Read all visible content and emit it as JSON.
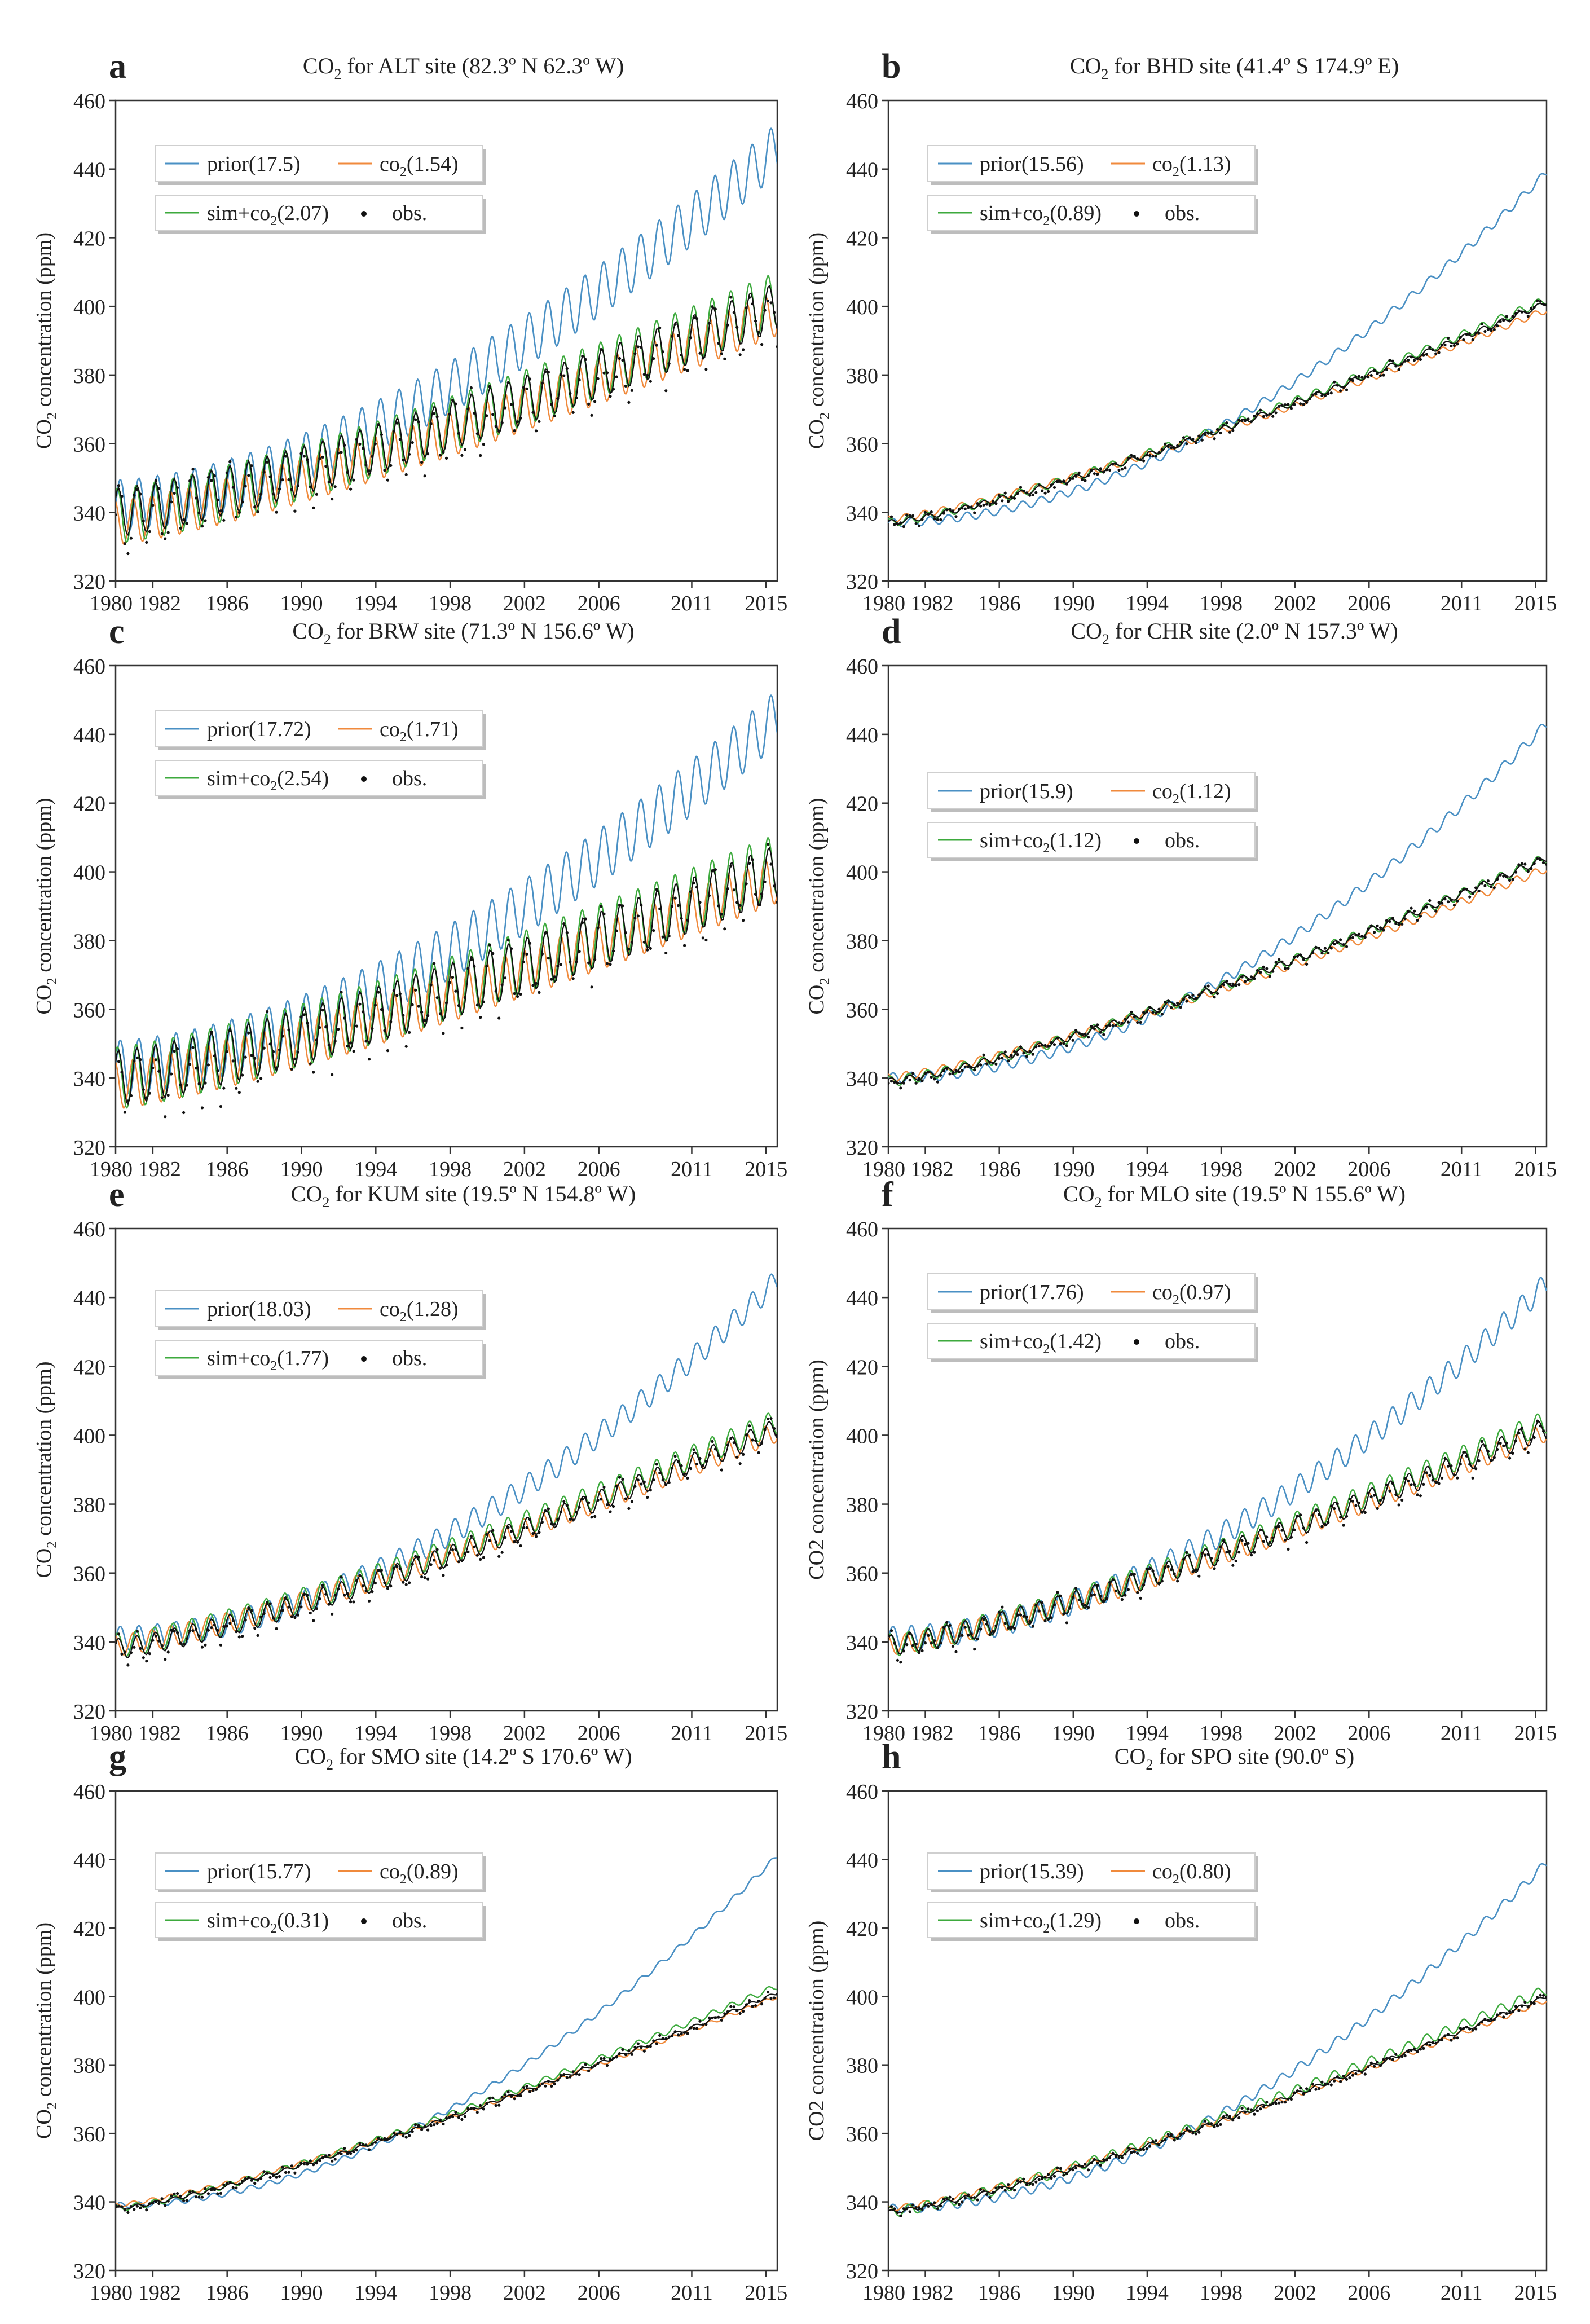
{
  "figure": {
    "xtick_labels": [
      "1980",
      "1982",
      "1986",
      "1990",
      "1994",
      "1998",
      "2002",
      "2006",
      "2011",
      "2015"
    ],
    "ytick_labels": [
      "320",
      "340",
      "360",
      "380",
      "400",
      "420",
      "440",
      "460"
    ],
    "obs_label": "obs."
  },
  "colors": {
    "prior": "#4a90c4",
    "co2": "#f08a3c",
    "sim": "#3daa3d",
    "obs": "#111111",
    "axis": "#333333"
  },
  "chart_data": [
    {
      "panel": "a",
      "type": "line",
      "title_pre": "CO",
      "title_sub": "2",
      "title_post": " for ALT site (82.3º N 62.3º W)",
      "ylabel_pre": "CO",
      "ylabel_sub": "2",
      "ylabel_post": " concentration (ppm)",
      "xlim": [
        1980,
        2015.6
      ],
      "ylim": [
        320,
        460
      ],
      "series": [
        {
          "key": "prior",
          "name_pre": "prior(17.5)",
          "name_sub": "",
          "name_post": "",
          "start": 342,
          "end": 446,
          "amplitude": 7.5,
          "curvature": 1.3
        },
        {
          "key": "co2",
          "name_pre": "co",
          "name_sub": "2",
          "name_post": "(1.54)",
          "start": 337,
          "end": 398,
          "amplitude": 6.5,
          "curvature": 0.9
        },
        {
          "key": "sim",
          "name_pre": "sim+co",
          "name_sub": "2",
          "name_post": "(2.07)",
          "start": 339,
          "end": 402,
          "amplitude": 8,
          "curvature": 0.9
        },
        {
          "key": "obs",
          "name_pre": "",
          "name_sub": "",
          "name_post": "",
          "start": 340,
          "end": 400,
          "amplitude": 7,
          "curvature": 0.9
        }
      ]
    },
    {
      "panel": "b",
      "type": "line",
      "title_pre": "CO",
      "title_sub": "2",
      "title_post": " for BHD site (41.4º S 174.9º E)",
      "ylabel_pre": "CO",
      "ylabel_sub": "2",
      "ylabel_post": " concentration (ppm)",
      "xlim": [
        1980,
        2015.6
      ],
      "ylim": [
        320,
        460
      ],
      "series": [
        {
          "key": "prior",
          "name_pre": "prior(15.56)",
          "name_sub": "",
          "name_post": "",
          "start": 337,
          "end": 439,
          "amplitude": 1.2,
          "curvature": 1.6
        },
        {
          "key": "co2",
          "name_pre": "co",
          "name_sub": "2",
          "name_post": "(1.13)",
          "start": 338,
          "end": 399,
          "amplitude": 1.0,
          "curvature": 0.9
        },
        {
          "key": "sim",
          "name_pre": "sim+co",
          "name_sub": "2",
          "name_post": "(0.89)",
          "start": 337,
          "end": 402,
          "amplitude": 1.2,
          "curvature": 0.9
        },
        {
          "key": "obs",
          "name_pre": "",
          "name_sub": "",
          "name_post": "",
          "start": 337,
          "end": 401,
          "amplitude": 0.8,
          "curvature": 0.9
        }
      ]
    },
    {
      "panel": "c",
      "type": "line",
      "title_pre": "CO",
      "title_sub": "2",
      "title_post": " for BRW site (71.3º N 156.6º W)",
      "ylabel_pre": "CO",
      "ylabel_sub": "2",
      "ylabel_post": " concentration (ppm)",
      "xlim": [
        1980,
        2015.6
      ],
      "ylim": [
        320,
        460
      ],
      "series": [
        {
          "key": "prior",
          "name_pre": "prior(17.72)",
          "name_sub": "",
          "name_post": "",
          "start": 343,
          "end": 445,
          "amplitude": 8,
          "curvature": 1.3
        },
        {
          "key": "co2",
          "name_pre": "co",
          "name_sub": "2",
          "name_post": "(1.71)",
          "start": 338,
          "end": 398,
          "amplitude": 7,
          "curvature": 0.9
        },
        {
          "key": "sim",
          "name_pre": "sim+co",
          "name_sub": "2",
          "name_post": "(2.54)",
          "start": 340,
          "end": 402,
          "amplitude": 9,
          "curvature": 0.9
        },
        {
          "key": "obs",
          "name_pre": "",
          "name_sub": "",
          "name_post": "",
          "start": 340,
          "end": 400,
          "amplitude": 8,
          "curvature": 0.9
        }
      ]
    },
    {
      "panel": "d",
      "type": "line",
      "title_pre": "CO",
      "title_sub": "2",
      "title_post": " for CHR site (2.0º N 157.3º W)",
      "ylabel_pre": "CO",
      "ylabel_sub": "2",
      "ylabel_post": " concentration (ppm)",
      "xlim": [
        1980,
        2015.6
      ],
      "ylim": [
        320,
        460
      ],
      "series": [
        {
          "key": "prior",
          "name_pre": "prior(15.9)",
          "name_sub": "",
          "name_post": "",
          "start": 340,
          "end": 443,
          "amplitude": 1.5,
          "curvature": 1.6
        },
        {
          "key": "co2",
          "name_pre": "co",
          "name_sub": "2",
          "name_post": "(1.12)",
          "start": 340,
          "end": 401,
          "amplitude": 1.2,
          "curvature": 0.9
        },
        {
          "key": "sim",
          "name_pre": "sim+co",
          "name_sub": "2",
          "name_post": "(1.12)",
          "start": 339,
          "end": 404,
          "amplitude": 1.5,
          "curvature": 0.9
        },
        {
          "key": "obs",
          "name_pre": "",
          "name_sub": "",
          "name_post": "",
          "start": 339,
          "end": 404,
          "amplitude": 1.0,
          "curvature": 0.9
        }
      ]
    },
    {
      "panel": "e",
      "type": "line",
      "title_pre": "CO",
      "title_sub": "2",
      "title_post": " for KUM site (19.5º N 154.8º W)",
      "ylabel_pre": "CO",
      "ylabel_sub": "2",
      "ylabel_post": " concentration (ppm)",
      "xlim": [
        1980,
        2015.6
      ],
      "ylim": [
        320,
        460
      ],
      "series": [
        {
          "key": "prior",
          "name_pre": "prior(18.03)",
          "name_sub": "",
          "name_post": "",
          "start": 341,
          "end": 445,
          "amplitude": 3.5,
          "curvature": 1.5
        },
        {
          "key": "co2",
          "name_pre": "co",
          "name_sub": "2",
          "name_post": "(1.28)",
          "start": 339,
          "end": 401,
          "amplitude": 3,
          "curvature": 0.9
        },
        {
          "key": "sim",
          "name_pre": "sim+co",
          "name_sub": "2",
          "name_post": "(1.77)",
          "start": 339,
          "end": 404,
          "amplitude": 3.5,
          "curvature": 0.9
        },
        {
          "key": "obs",
          "name_pre": "",
          "name_sub": "",
          "name_post": "",
          "start": 338,
          "end": 402,
          "amplitude": 3,
          "curvature": 0.9
        }
      ]
    },
    {
      "panel": "f",
      "type": "line",
      "title_pre": "CO",
      "title_sub": "2",
      "title_post": " for MLO site (19.5º N 155.6º W)",
      "ylabel_pre": "CO2 concentration (ppm)",
      "ylabel_sub": "",
      "ylabel_post": "",
      "xlim": [
        1980,
        2015.6
      ],
      "ylim": [
        320,
        460
      ],
      "series": [
        {
          "key": "prior",
          "name_pre": "prior(17.76)",
          "name_sub": "",
          "name_post": "",
          "start": 341,
          "end": 444,
          "amplitude": 3.5,
          "curvature": 1.5
        },
        {
          "key": "co2",
          "name_pre": "co",
          "name_sub": "2",
          "name_post": "(0.97)",
          "start": 339,
          "end": 401,
          "amplitude": 2.8,
          "curvature": 0.9
        },
        {
          "key": "sim",
          "name_pre": "sim+co",
          "name_sub": "2",
          "name_post": "(1.42)",
          "start": 339,
          "end": 404,
          "amplitude": 3.3,
          "curvature": 0.9
        },
        {
          "key": "obs",
          "name_pre": "",
          "name_sub": "",
          "name_post": "",
          "start": 339,
          "end": 402,
          "amplitude": 3,
          "curvature": 0.9
        }
      ]
    },
    {
      "panel": "g",
      "type": "line",
      "title_pre": "CO",
      "title_sub": "2",
      "title_post": " for SMO site (14.2º S 170.6º W)",
      "ylabel_pre": "CO",
      "ylabel_sub": "2",
      "ylabel_post": " concentration (ppm)",
      "xlim": [
        1980,
        2015.6
      ],
      "ylim": [
        320,
        460
      ],
      "series": [
        {
          "key": "prior",
          "name_pre": "prior(15.77)",
          "name_sub": "",
          "name_post": "",
          "start": 339,
          "end": 441,
          "amplitude": 0.8,
          "curvature": 1.6
        },
        {
          "key": "co2",
          "name_pre": "co",
          "name_sub": "2",
          "name_post": "(0.89)",
          "start": 339,
          "end": 400,
          "amplitude": 0.6,
          "curvature": 0.9
        },
        {
          "key": "sim",
          "name_pre": "sim+co",
          "name_sub": "2",
          "name_post": "(0.31)",
          "start": 338,
          "end": 403,
          "amplitude": 0.9,
          "curvature": 0.9
        },
        {
          "key": "obs",
          "name_pre": "",
          "name_sub": "",
          "name_post": "",
          "start": 338,
          "end": 401,
          "amplitude": 0.5,
          "curvature": 0.9
        }
      ]
    },
    {
      "panel": "h",
      "type": "line",
      "title_pre": "CO",
      "title_sub": "2",
      "title_post": " for SPO site (90.0º S)",
      "ylabel_pre": "CO2 concentration (ppm)",
      "ylabel_sub": "",
      "ylabel_post": "",
      "xlim": [
        1980,
        2015.6
      ],
      "ylim": [
        320,
        460
      ],
      "series": [
        {
          "key": "prior",
          "name_pre": "prior(15.39)",
          "name_sub": "",
          "name_post": "",
          "start": 338,
          "end": 439,
          "amplitude": 1.3,
          "curvature": 1.6
        },
        {
          "key": "co2",
          "name_pre": "co",
          "name_sub": "2",
          "name_post": "(0.80)",
          "start": 338,
          "end": 399,
          "amplitude": 0.8,
          "curvature": 0.9
        },
        {
          "key": "sim",
          "name_pre": "sim+co",
          "name_sub": "2",
          "name_post": "(1.29)",
          "start": 337,
          "end": 402,
          "amplitude": 1.5,
          "curvature": 0.9
        },
        {
          "key": "obs",
          "name_pre": "",
          "name_sub": "",
          "name_post": "",
          "start": 337,
          "end": 400,
          "amplitude": 0.6,
          "curvature": 0.9
        }
      ]
    }
  ]
}
